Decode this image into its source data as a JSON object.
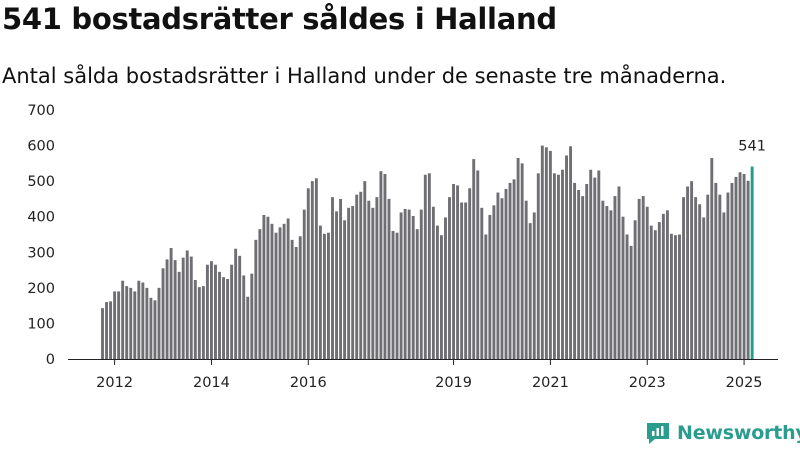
{
  "title": "541 bostadsrätter såldes i Halland",
  "subtitle": "Antal sålda bostadsrätter i Halland under de senaste tre månaderna.",
  "brand": {
    "name": "Newsworthy",
    "logo_icon": "newsworthy-logo-icon"
  },
  "colors": {
    "bar": "#6e6e73",
    "highlight": "#1f9e8e",
    "axis": "#222222",
    "brand": "#2a9d8f"
  },
  "chart_data": {
    "type": "bar",
    "title": "541 bostadsrätter såldes i Halland",
    "subtitle": "Antal sålda bostadsrätter i Halland under de senaste tre månaderna.",
    "xlabel": "",
    "ylabel": "",
    "ylim": [
      0,
      700
    ],
    "yticks": [
      0,
      100,
      200,
      300,
      400,
      500,
      600,
      700
    ],
    "grid": false,
    "x_start": 2011.75,
    "x_step": 0.08333,
    "xticks": [
      {
        "label": "2012",
        "value": 2012
      },
      {
        "label": "2014",
        "value": 2014
      },
      {
        "label": "2016",
        "value": 2016
      },
      {
        "label": "2019",
        "value": 2019
      },
      {
        "label": "2021",
        "value": 2021
      },
      {
        "label": "2023",
        "value": 2023
      },
      {
        "label": "2025",
        "value": 2025
      }
    ],
    "values": [
      143,
      160,
      162,
      190,
      190,
      220,
      205,
      200,
      190,
      220,
      215,
      200,
      172,
      165,
      200,
      255,
      280,
      312,
      278,
      245,
      285,
      305,
      288,
      222,
      202,
      205,
      265,
      275,
      265,
      245,
      230,
      225,
      265,
      310,
      290,
      235,
      175,
      240,
      335,
      365,
      405,
      400,
      380,
      355,
      370,
      380,
      395,
      335,
      315,
      345,
      420,
      480,
      500,
      508,
      375,
      352,
      355,
      455,
      415,
      450,
      390,
      425,
      430,
      462,
      470,
      500,
      445,
      425,
      455,
      528,
      520,
      450,
      360,
      355,
      412,
      422,
      420,
      402,
      365,
      420,
      518,
      522,
      428,
      375,
      348,
      398,
      455,
      492,
      488,
      440,
      440,
      480,
      562,
      530,
      425,
      350,
      405,
      432,
      468,
      452,
      478,
      495,
      505,
      565,
      550,
      445,
      382,
      412,
      522,
      600,
      595,
      585,
      522,
      518,
      532,
      572,
      598,
      495,
      475,
      458,
      492,
      532,
      510,
      530,
      445,
      430,
      418,
      458,
      485,
      400,
      350,
      318,
      390,
      450,
      458,
      428,
      375,
      362,
      385,
      408,
      418,
      352,
      348,
      350,
      455,
      485,
      500,
      455,
      435,
      398,
      462,
      565,
      495,
      462,
      412,
      468,
      495,
      512,
      525,
      520,
      501,
      541
    ],
    "highlight_index": 161,
    "annotation": {
      "label": "541",
      "value": 541
    }
  }
}
